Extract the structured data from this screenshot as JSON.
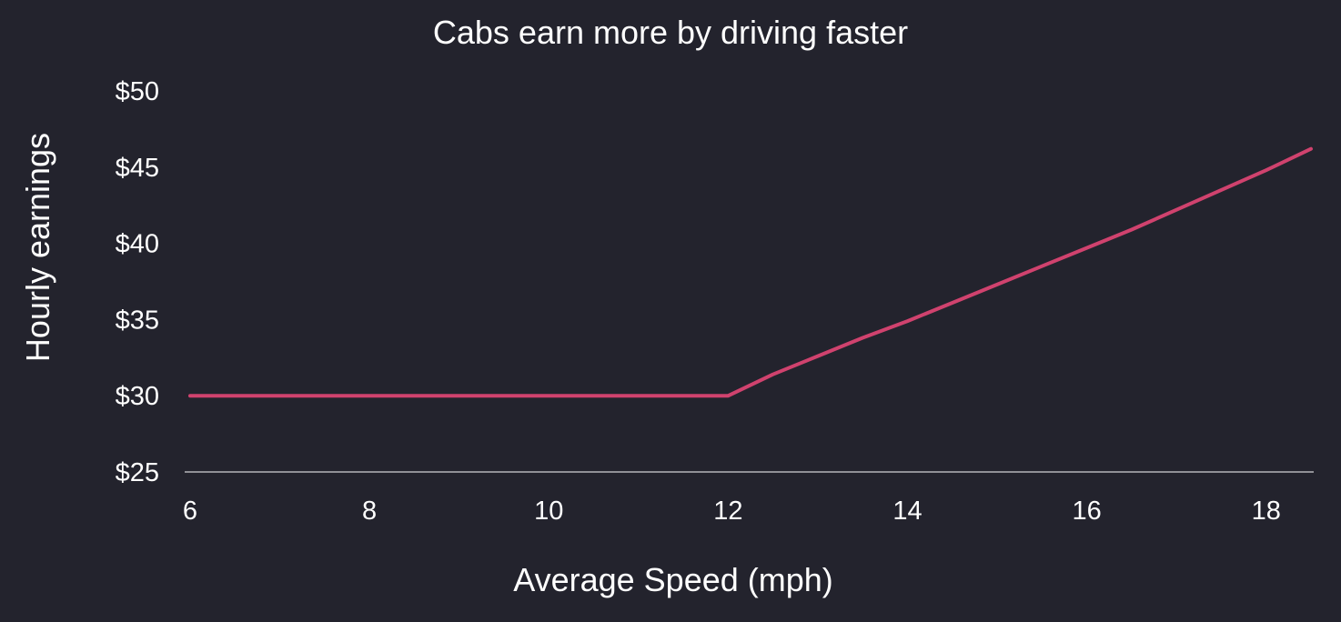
{
  "colors": {
    "background": "#23232d",
    "text": "#ffffff",
    "axis": "#ffffff",
    "line": "#d0426e"
  },
  "chart_data": {
    "type": "line",
    "title": "Cabs earn more by driving faster",
    "xlabel": "Average Speed (mph)",
    "ylabel": "Hourly earnings",
    "xlim": [
      6,
      18.5
    ],
    "ylim": [
      25,
      50
    ],
    "x_ticks": [
      6,
      8,
      10,
      12,
      14,
      16,
      18
    ],
    "x_tick_labels": [
      "6",
      "8",
      "10",
      "12",
      "14",
      "16",
      "18"
    ],
    "y_ticks": [
      25,
      30,
      35,
      40,
      45,
      50
    ],
    "y_tick_labels": [
      "$25",
      "$30",
      "$35",
      "$40",
      "$45",
      "$50"
    ],
    "grid": false,
    "series": [
      {
        "x": [
          6,
          8,
          10,
          12,
          12.5,
          13,
          13.5,
          14,
          14.5,
          15,
          15.5,
          16,
          16.5,
          17,
          17.5,
          18,
          18.5
        ],
        "y": [
          30,
          30,
          30,
          30,
          31.4,
          32.6,
          33.8,
          34.9,
          36.1,
          37.3,
          38.5,
          39.7,
          40.9,
          42.2,
          43.5,
          44.8,
          46.2
        ]
      }
    ]
  }
}
